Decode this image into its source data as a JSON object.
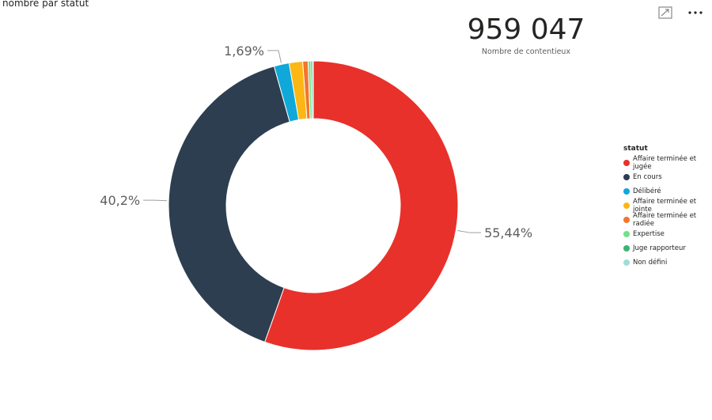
{
  "visual": {
    "title": "nombre par statut",
    "expand_icon": "focus-mode-icon",
    "more_icon": "more-options-icon"
  },
  "card": {
    "value": "959 047",
    "label": "Nombre de contentieux"
  },
  "chart_data": {
    "type": "pie",
    "hole": true,
    "title": "nombre par statut",
    "legend_title": "statut",
    "legend_position": "right",
    "categories": [
      "Affaire terminée et jugée",
      "En cours",
      "Délibéré",
      "Affaire terminée et jointe",
      "Affaire terminée et radiée",
      "Expertise",
      "Juge rapporteur",
      "Non défini"
    ],
    "values": [
      55.44,
      40.2,
      1.69,
      1.5,
      0.6,
      0.3,
      0.2,
      0.07
    ],
    "colors": [
      "#e8312a",
      "#2d3e50",
      "#10a8d9",
      "#fcb714",
      "#f2762e",
      "#73e08a",
      "#3cb372",
      "#9fded8"
    ],
    "data_labels": [
      {
        "index": 0,
        "text": "55,44%"
      },
      {
        "index": 1,
        "text": "40,2%"
      },
      {
        "index": 2,
        "text": "1,69%"
      }
    ]
  }
}
